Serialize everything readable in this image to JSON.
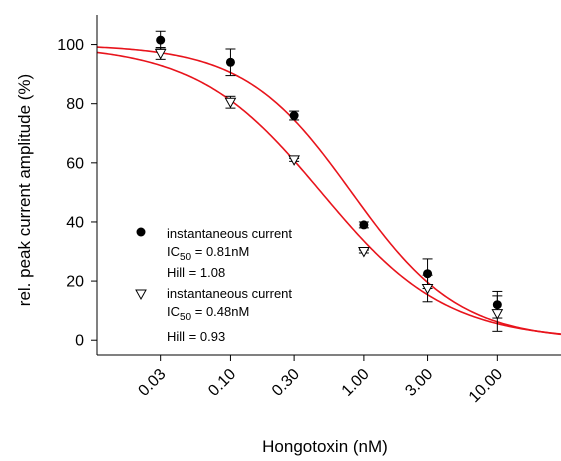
{
  "chart_data": {
    "type": "scatter",
    "xlabel": "Hongotoxin (nM)",
    "ylabel": "rel. peak current amplitude (%)",
    "x_scale": "log",
    "xlim": [
      0.01,
      30
    ],
    "ylim": [
      -5,
      110
    ],
    "x_ticks": [
      0.03,
      0.1,
      0.3,
      1,
      3,
      10
    ],
    "x_tick_labels": [
      "0.03",
      "0.10",
      "0.30",
      "1.00",
      "3.00",
      "10.00"
    ],
    "y_ticks": [
      0,
      20,
      40,
      60,
      80,
      100
    ],
    "y_tick_labels": [
      "0",
      "20",
      "40",
      "60",
      "80",
      "100"
    ],
    "fit_color": "#e8141c",
    "series": [
      {
        "marker": "filled-circle",
        "legend_label": "instantaneous current",
        "ic50_prefix": "IC",
        "ic50_sub": "50",
        "ic50_value": " = 0.81nM",
        "hill_text": "Hill = 1.08",
        "ic50": 0.81,
        "hill": 1.08,
        "x": [
          0.03,
          0.1,
          0.3,
          1,
          3,
          10
        ],
        "y": [
          101.5,
          94,
          76,
          39,
          22.5,
          12
        ],
        "err": [
          3,
          4.5,
          1.5,
          1,
          5,
          4.5
        ]
      },
      {
        "marker": "open-triangle",
        "legend_label": "instantaneous current",
        "ic50_prefix": "IC",
        "ic50_sub": "50",
        "ic50_value": " = 0.48nM",
        "hill_text": "Hill = 0.93",
        "ic50": 0.48,
        "hill": 0.93,
        "x": [
          0.03,
          0.1,
          0.3,
          1,
          3,
          10
        ],
        "y": [
          97,
          80.5,
          61,
          30,
          17.5,
          9
        ],
        "err": [
          2,
          2,
          0.5,
          0.5,
          4.5,
          6
        ]
      }
    ]
  }
}
